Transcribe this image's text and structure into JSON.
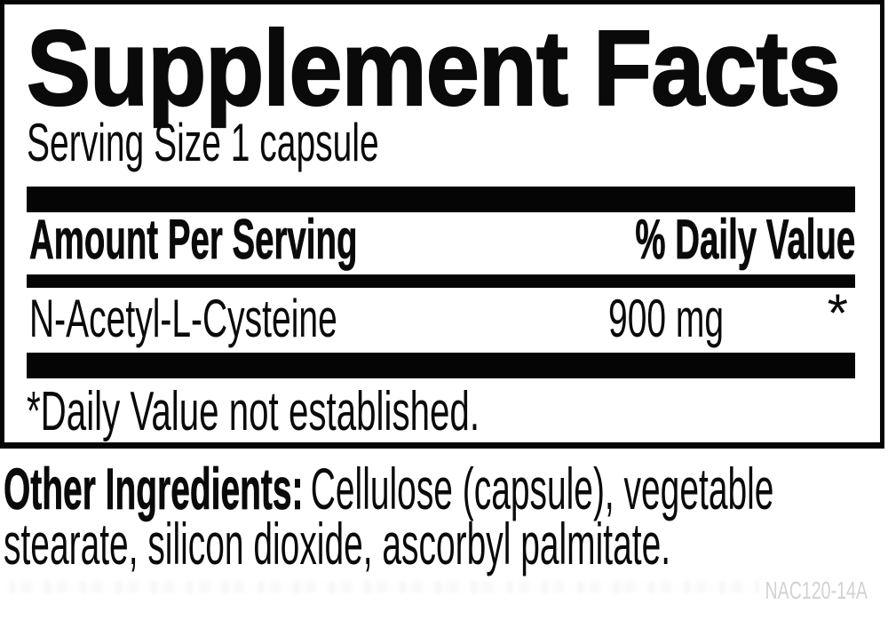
{
  "label": {
    "title": "Supplement Facts",
    "serving_size": "Serving Size 1 capsule",
    "header": {
      "amount": "Amount Per Serving",
      "daily_value": "% Daily Value"
    },
    "nutrients": [
      {
        "name": "N-Acetyl-L-Cysteine",
        "amount": "900 mg",
        "daily_value": "*"
      }
    ],
    "footnote": "*Daily Value not established.",
    "colors": {
      "text": "#0a0a0a",
      "bars": "#050505",
      "background": "#ffffff",
      "product_code": "#d2d2d2"
    }
  },
  "other_ingredients": {
    "label": "Other Ingredients:",
    "line1_rest": "Cellulose (capsule), vegetable",
    "line2": "stearate, silicon dioxide, ascorbyl palmitate."
  },
  "product_code": "NAC120-14A"
}
